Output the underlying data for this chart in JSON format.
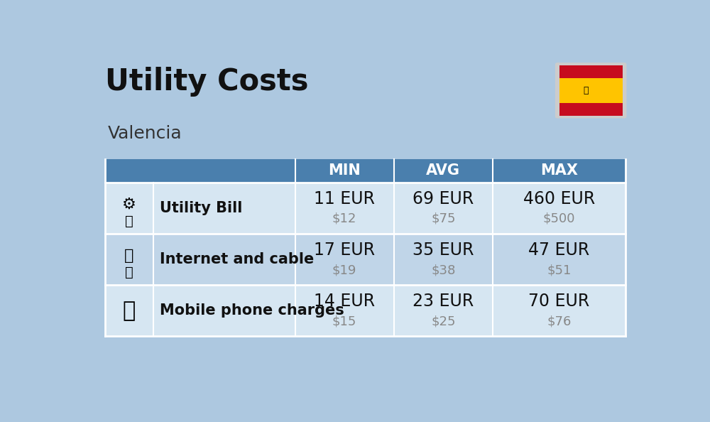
{
  "title": "Utility Costs",
  "subtitle": "Valencia",
  "background_color": "#adc8e0",
  "header_bg_color": "#4a7fad",
  "header_text_color": "#ffffff",
  "row_bg_color_1": "#d6e6f2",
  "row_bg_color_2": "#c0d5e8",
  "header_labels": [
    "MIN",
    "AVG",
    "MAX"
  ],
  "rows": [
    {
      "label": "Utility Bill",
      "min_eur": "11 EUR",
      "min_usd": "$12",
      "avg_eur": "69 EUR",
      "avg_usd": "$75",
      "max_eur": "460 EUR",
      "max_usd": "$500"
    },
    {
      "label": "Internet and cable",
      "min_eur": "17 EUR",
      "min_usd": "$19",
      "avg_eur": "35 EUR",
      "avg_usd": "$38",
      "max_eur": "47 EUR",
      "max_usd": "$51"
    },
    {
      "label": "Mobile phone charges",
      "min_eur": "14 EUR",
      "min_usd": "$15",
      "avg_eur": "23 EUR",
      "avg_usd": "$25",
      "max_eur": "70 EUR",
      "max_usd": "$76"
    }
  ],
  "eur_fontsize": 17,
  "usd_fontsize": 13,
  "label_fontsize": 15,
  "header_fontsize": 15,
  "title_fontsize": 30,
  "subtitle_fontsize": 18,
  "flag_red": "#c60b1e",
  "flag_yellow": "#ffc400"
}
